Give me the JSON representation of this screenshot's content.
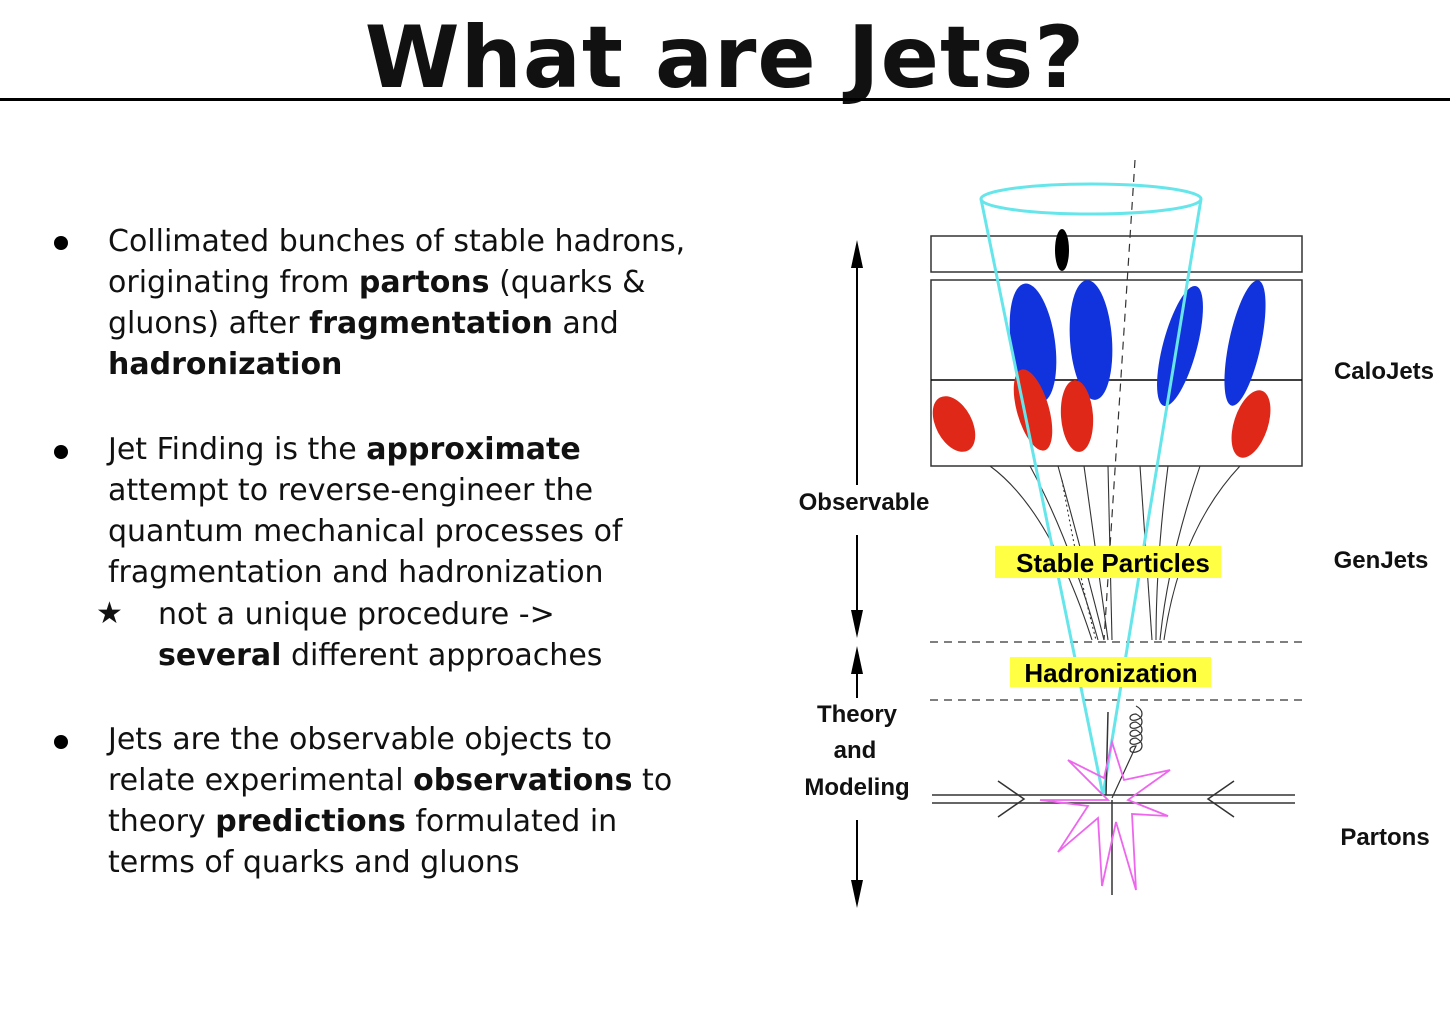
{
  "slide": {
    "title": "What are Jets?"
  },
  "bullets": [
    {
      "lines": [
        [
          {
            "t": "Collimated bunches of stable hadrons,",
            "b": false
          }
        ],
        [
          {
            "t": "originating from ",
            "b": false
          },
          {
            "t": "partons",
            "b": true
          },
          {
            "t": " (quarks &",
            "b": false
          }
        ],
        [
          {
            "t": "gluons) after ",
            "b": false
          },
          {
            "t": "fragmentation",
            "b": true
          },
          {
            "t": " and",
            "b": false
          }
        ],
        [
          {
            "t": "hadronization",
            "b": true
          }
        ]
      ]
    },
    {
      "lines": [
        [
          {
            "t": "Jet Finding is the ",
            "b": false
          },
          {
            "t": "approximate",
            "b": true
          }
        ],
        [
          {
            "t": "attempt to reverse-engineer the",
            "b": false
          }
        ],
        [
          {
            "t": "quantum mechanical processes of",
            "b": false
          }
        ],
        [
          {
            "t": "fragmentation and hadronization",
            "b": false
          }
        ]
      ],
      "sub": {
        "marker": "★",
        "lines": [
          [
            {
              "t": "not a unique procedure ->",
              "b": false
            }
          ],
          [
            {
              "t": "several",
              "b": true
            },
            {
              "t": " different approaches",
              "b": false
            }
          ]
        ]
      }
    },
    {
      "lines": [
        [
          {
            "t": "Jets are the observable objects to",
            "b": false
          }
        ],
        [
          {
            "t": "relate experimental ",
            "b": false
          },
          {
            "t": "observations",
            "b": true
          },
          {
            "t": " to",
            "b": false
          }
        ],
        [
          {
            "t": "theory ",
            "b": false
          },
          {
            "t": "predictions",
            "b": true
          },
          {
            "t": " formulated in",
            "b": false
          }
        ],
        [
          {
            "t": "terms of quarks and gluons",
            "b": false
          }
        ]
      ]
    }
  ],
  "diagram": {
    "left_labels": {
      "observable": "Observable",
      "theory_lines": [
        "Theory",
        "and",
        "Modeling"
      ]
    },
    "right_labels": {
      "calojets": "CaloJets",
      "genjets": "GenJets",
      "partons": "Partons"
    },
    "highlight_labels": {
      "stable_particles": "Stable Particles",
      "hadronization": "Hadronization"
    },
    "colors": {
      "highlight": "#ffff44",
      "cone": "#66e6ea",
      "hadron_blue": "#1133dd",
      "hadron_red": "#e02818",
      "gluon_burst": "#ee66ee"
    }
  }
}
